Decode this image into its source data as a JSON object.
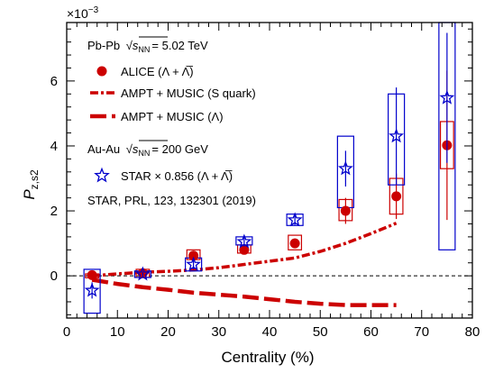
{
  "chart_data": {
    "type": "scatter",
    "xlabel": "Centrality (%)",
    "ylabel": "P",
    "ylabel_sub": "z,s2",
    "exponent_label": "×10",
    "exponent_value": "−3",
    "xlim": [
      0,
      80
    ],
    "ylim": [
      -1.3,
      7.8
    ],
    "x_ticks": [
      0,
      10,
      20,
      30,
      40,
      50,
      60,
      70,
      80
    ],
    "y_ticks": [
      0,
      2,
      4,
      6
    ],
    "zero_line": true,
    "legend": {
      "placement": "top-left",
      "group1_header": "Pb-Pb √s_NN = 5.02 TeV",
      "group1_header_pre": "Pb-Pb",
      "group1_header_post": "= 5.02 TeV",
      "alice": "ALICE (Λ + Λ̅)",
      "ampt_s": "AMPT + MUSIC (S quark)",
      "ampt_l": "AMPT + MUSIC (Λ)",
      "group2_header": "Au-Au √s_NN = 200 GeV",
      "group2_header_pre": "Au-Au",
      "group2_header_post": "= 200 GeV",
      "star": "STAR × 0.856 (Λ + Λ̅)",
      "reference": "STAR, PRL, 123, 132301 (2019)",
      "sqrt_s": "s",
      "sqrt_sub": "NN"
    },
    "colors": {
      "alice": "#cc0000",
      "star": "#0000cc",
      "ampt": "#cc0000"
    },
    "series": [
      {
        "name": "ALICE (Λ + Λ̅)",
        "marker": "circle",
        "points": [
          {
            "x": 5,
            "y": 0.02,
            "stat": 0.06,
            "sys_lo": -0.06,
            "sys_hi": 0.06,
            "box_half_width": 1.3
          },
          {
            "x": 15,
            "y": 0.08,
            "stat": 0.1,
            "sys_lo": -0.05,
            "sys_hi": 0.2,
            "box_half_width": 1.3
          },
          {
            "x": 25,
            "y": 0.62,
            "stat": 0.15,
            "sys_lo": 0.5,
            "sys_hi": 0.8,
            "box_half_width": 1.3
          },
          {
            "x": 35,
            "y": 0.8,
            "stat": 0.12,
            "sys_lo": 0.7,
            "sys_hi": 0.95,
            "box_half_width": 1.3
          },
          {
            "x": 45,
            "y": 1.0,
            "stat": 0.15,
            "sys_lo": 0.8,
            "sys_hi": 1.25,
            "box_half_width": 1.3
          },
          {
            "x": 55,
            "y": 2.0,
            "stat": 0.4,
            "sys_lo": 1.7,
            "sys_hi": 2.35,
            "box_half_width": 1.3
          },
          {
            "x": 65,
            "y": 2.45,
            "stat": 0.7,
            "sys_lo": 1.9,
            "sys_hi": 3.0,
            "box_half_width": 1.3
          },
          {
            "x": 75,
            "y": 4.02,
            "stat": 2.3,
            "sys_lo": 3.3,
            "sys_hi": 4.75,
            "box_half_width": 1.3
          }
        ]
      },
      {
        "name": "STAR × 0.856 (Λ + Λ̅)",
        "marker": "star",
        "points": [
          {
            "x": 5,
            "y": -0.45,
            "stat": 0.25,
            "sys_lo": -1.15,
            "sys_hi": 0.2,
            "box_half_width": 1.6
          },
          {
            "x": 15,
            "y": 0.05,
            "stat": 0.08,
            "sys_lo": -0.05,
            "sys_hi": 0.15,
            "box_half_width": 1.6
          },
          {
            "x": 25,
            "y": 0.35,
            "stat": 0.15,
            "sys_lo": 0.15,
            "sys_hi": 0.55,
            "box_half_width": 1.6
          },
          {
            "x": 35,
            "y": 1.05,
            "stat": 0.15,
            "sys_lo": 0.95,
            "sys_hi": 1.2,
            "box_half_width": 1.6
          },
          {
            "x": 45,
            "y": 1.72,
            "stat": 0.15,
            "sys_lo": 1.55,
            "sys_hi": 1.9,
            "box_half_width": 1.6
          },
          {
            "x": 55,
            "y": 3.3,
            "stat": 0.55,
            "sys_lo": 2.1,
            "sys_hi": 4.3,
            "box_half_width": 1.6
          },
          {
            "x": 65,
            "y": 4.3,
            "stat": 1.5,
            "sys_lo": 2.8,
            "sys_hi": 5.6,
            "box_half_width": 1.6
          },
          {
            "x": 75,
            "y": 5.48,
            "stat": 2.0,
            "sys_lo": 0.8,
            "sys_hi": 7.8,
            "box_half_width": 1.6
          }
        ]
      },
      {
        "name": "AMPT + MUSIC (S quark)",
        "style": "dash-dot",
        "x": [
          5,
          10,
          15,
          20,
          25,
          30,
          35,
          40,
          45,
          50,
          55,
          60,
          65
        ],
        "y": [
          0.0,
          0.06,
          0.11,
          0.14,
          0.18,
          0.25,
          0.35,
          0.45,
          0.55,
          0.75,
          1.0,
          1.3,
          1.62
        ]
      },
      {
        "name": "AMPT + MUSIC (Λ)",
        "style": "dashed",
        "x": [
          5,
          10,
          15,
          20,
          25,
          30,
          35,
          40,
          45,
          50,
          55,
          60,
          65
        ],
        "y": [
          -0.12,
          -0.25,
          -0.35,
          -0.43,
          -0.52,
          -0.58,
          -0.64,
          -0.72,
          -0.8,
          -0.86,
          -0.9,
          -0.9,
          -0.9
        ]
      }
    ]
  }
}
